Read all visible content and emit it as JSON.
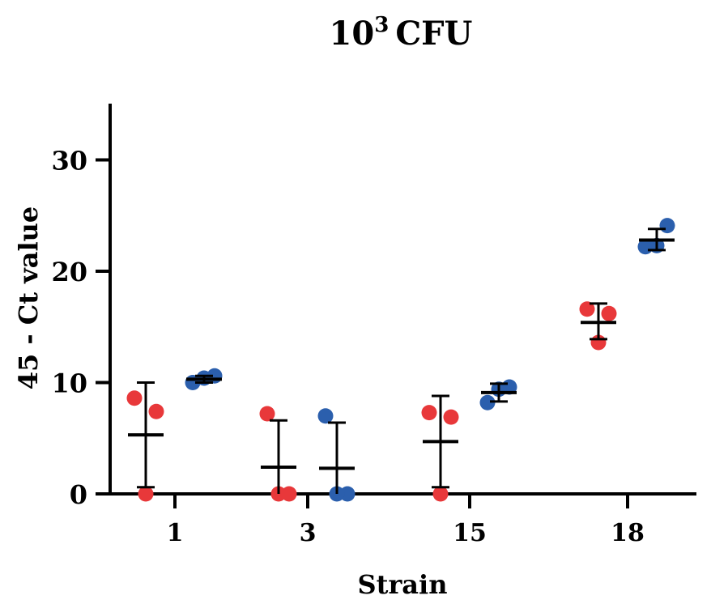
{
  "chart_data": {
    "type": "scatter",
    "title_base": "10",
    "title_exponent": "3",
    "title_unit": "CFU",
    "xlabel": "Strain",
    "ylabel": "45 - Ct value",
    "ylim": [
      0,
      35
    ],
    "yticks": [
      0,
      10,
      20,
      30
    ],
    "categories": [
      "1",
      "3",
      "15",
      "18"
    ],
    "colors": {
      "series_a": "#e8383a",
      "series_b": "#2b5fad",
      "axis": "#000000"
    },
    "series": [
      {
        "name": "series-a",
        "color": "#e8383a",
        "groups": [
          {
            "category": "1",
            "points": [
              8.6,
              7.4,
              0.0
            ],
            "mean": 5.3,
            "sd_low": 0.6,
            "sd_high": 10.0
          },
          {
            "category": "3",
            "points": [
              7.2,
              0.0,
              0.0
            ],
            "mean": 2.4,
            "sd_low": 0.0,
            "sd_high": 6.6
          },
          {
            "category": "15",
            "points": [
              7.3,
              6.9,
              0.0
            ],
            "mean": 4.7,
            "sd_low": 0.6,
            "sd_high": 8.8
          },
          {
            "category": "18",
            "points": [
              16.6,
              16.2,
              13.6
            ],
            "mean": 15.4,
            "sd_low": 13.9,
            "sd_high": 17.1
          }
        ]
      },
      {
        "name": "series-b",
        "color": "#2b5fad",
        "groups": [
          {
            "category": "1",
            "points": [
              10.0,
              10.6,
              10.4
            ],
            "mean": 10.3,
            "sd_low": 10.0,
            "sd_high": 10.6
          },
          {
            "category": "3",
            "points": [
              7.0,
              0.0,
              0.0
            ],
            "mean": 2.3,
            "sd_low": 0.0,
            "sd_high": 6.4
          },
          {
            "category": "15",
            "points": [
              8.2,
              9.6,
              9.4
            ],
            "mean": 9.1,
            "sd_low": 8.3,
            "sd_high": 9.9
          },
          {
            "category": "18",
            "points": [
              22.2,
              24.1,
              22.3
            ],
            "mean": 22.8,
            "sd_low": 21.9,
            "sd_high": 23.8
          }
        ]
      }
    ]
  }
}
